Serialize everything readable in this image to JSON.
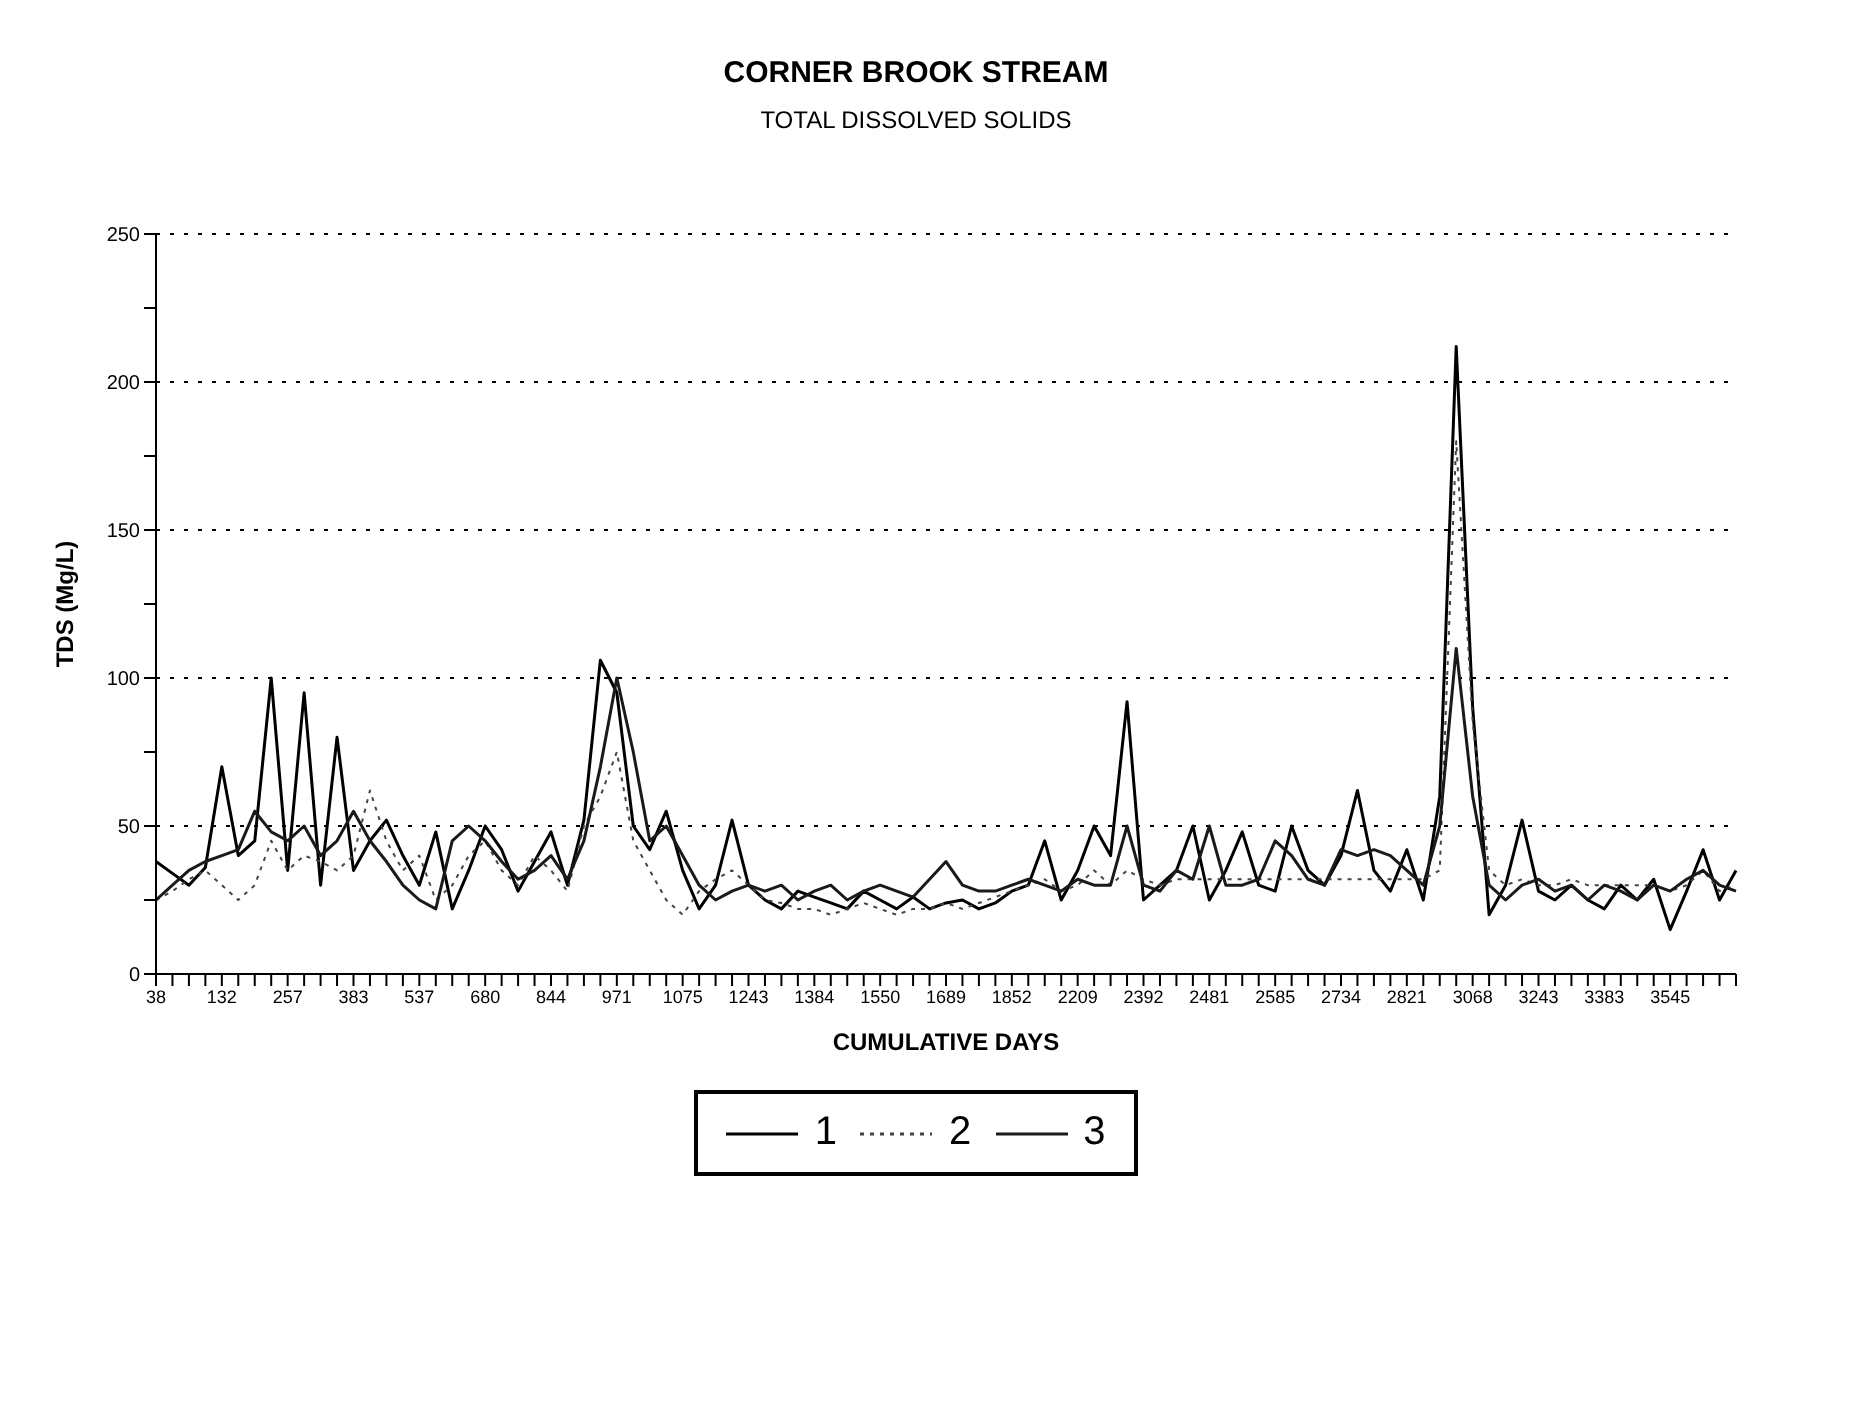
{
  "chart_data": {
    "type": "line",
    "title": "CORNER BROOK STREAM",
    "subtitle": "TOTAL DISSOLVED SOLIDS",
    "xlabel": "CUMULATIVE DAYS",
    "ylabel": "TDS (Mg/L)",
    "categories": [
      "38",
      null,
      null,
      null,
      "132",
      null,
      null,
      null,
      "257",
      null,
      null,
      null,
      "383",
      null,
      null,
      null,
      "537",
      null,
      null,
      null,
      "680",
      null,
      null,
      null,
      "844",
      null,
      null,
      null,
      "971",
      null,
      null,
      null,
      "1075",
      null,
      null,
      null,
      "1243",
      null,
      null,
      null,
      "1384",
      null,
      null,
      null,
      "1550",
      null,
      null,
      null,
      "1689",
      null,
      null,
      null,
      "1852",
      null,
      null,
      null,
      "2209",
      null,
      null,
      null,
      "2392",
      null,
      null,
      null,
      "2481",
      null,
      null,
      null,
      "2585",
      null,
      null,
      null,
      "2734",
      null,
      null,
      null,
      "2821",
      null,
      null,
      null,
      "3068",
      null,
      null,
      null,
      "3243",
      null,
      null,
      null,
      "3383",
      null,
      null,
      null,
      "3545",
      null,
      null,
      null,
      null
    ],
    "series": [
      {
        "name": "1",
        "color": "#000000",
        "line_style": "solid",
        "values": [
          38,
          34,
          30,
          36,
          70,
          40,
          45,
          100,
          35,
          95,
          30,
          80,
          35,
          45,
          52,
          40,
          30,
          48,
          22,
          35,
          50,
          42,
          28,
          38,
          48,
          30,
          52,
          106,
          95,
          50,
          42,
          55,
          35,
          22,
          30,
          52,
          30,
          25,
          22,
          28,
          26,
          24,
          22,
          28,
          25,
          22,
          26,
          22,
          24,
          25,
          22,
          24,
          28,
          30,
          45,
          25,
          35,
          50,
          40,
          92,
          25,
          30,
          35,
          50,
          25,
          35,
          48,
          30,
          28,
          50,
          35,
          30,
          40,
          62,
          35,
          28,
          42,
          25,
          60,
          212,
          90,
          20,
          30,
          52,
          28,
          25,
          30,
          25,
          22,
          30,
          25,
          32,
          15,
          28,
          42,
          25,
          35
        ]
      },
      {
        "name": "2",
        "color": "#444444",
        "line_style": "dotted",
        "values": [
          25,
          28,
          32,
          35,
          30,
          25,
          30,
          45,
          35,
          40,
          38,
          35,
          40,
          62,
          45,
          35,
          40,
          25,
          30,
          40,
          45,
          35,
          30,
          40,
          35,
          28,
          50,
          60,
          75,
          45,
          35,
          25,
          20,
          28,
          32,
          35,
          30,
          25,
          24,
          22,
          22,
          20,
          22,
          24,
          22,
          20,
          22,
          22,
          24,
          22,
          24,
          26,
          28,
          30,
          32,
          28,
          30,
          35,
          30,
          35,
          32,
          30,
          32,
          32,
          32,
          32,
          32,
          32,
          32,
          32,
          32,
          32,
          32,
          32,
          32,
          32,
          32,
          32,
          35,
          180,
          85,
          35,
          30,
          32,
          30,
          30,
          32,
          30,
          30,
          30,
          30,
          30,
          28,
          30,
          35,
          28,
          30
        ]
      },
      {
        "name": "3",
        "color": "#1a1a1a",
        "line_style": "solid",
        "values": [
          25,
          30,
          35,
          38,
          40,
          42,
          55,
          48,
          45,
          50,
          40,
          45,
          55,
          45,
          38,
          30,
          25,
          22,
          45,
          50,
          45,
          38,
          32,
          35,
          40,
          32,
          45,
          70,
          100,
          75,
          45,
          50,
          40,
          30,
          25,
          28,
          30,
          28,
          30,
          25,
          28,
          30,
          25,
          28,
          30,
          28,
          26,
          32,
          38,
          30,
          28,
          28,
          30,
          32,
          30,
          28,
          32,
          30,
          30,
          50,
          30,
          28,
          35,
          32,
          50,
          30,
          30,
          32,
          45,
          40,
          32,
          30,
          42,
          40,
          42,
          40,
          35,
          30,
          50,
          110,
          60,
          30,
          25,
          30,
          32,
          28,
          30,
          25,
          30,
          28,
          25,
          30,
          28,
          32,
          35,
          30,
          28
        ]
      }
    ],
    "ylim": [
      0,
      250
    ],
    "yticks": [
      0,
      {
        "value": 25,
        "label": null
      },
      50,
      {
        "value": 75,
        "label": null
      },
      100,
      {
        "value": 125,
        "label": null
      },
      150,
      {
        "value": 175,
        "label": null
      },
      200,
      {
        "value": 225,
        "label": null
      },
      250
    ],
    "grid": "y",
    "legend": "bottom",
    "marker": "none"
  }
}
